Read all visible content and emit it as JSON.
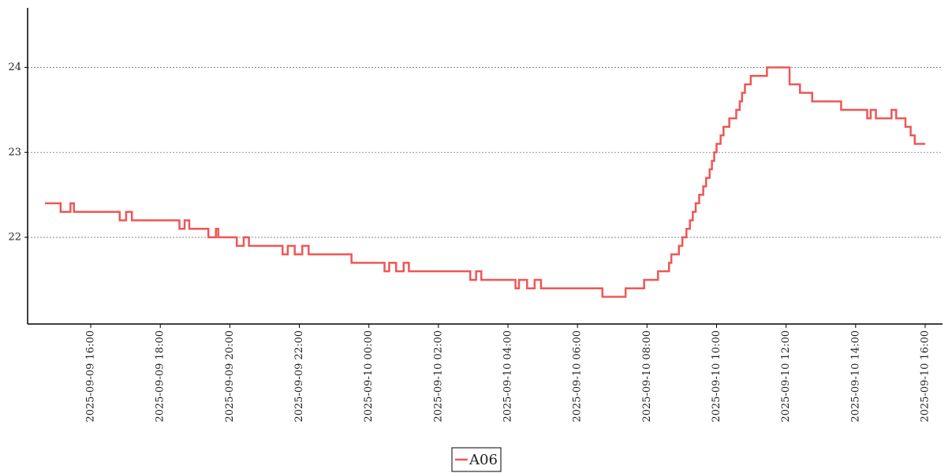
{
  "chart_data": {
    "type": "step-line",
    "x": [
      "2025-09-09 14:41",
      "2025-09-09 15:08",
      "2025-09-09 15:25",
      "2025-09-09 15:31",
      "2025-09-09 16:50",
      "2025-09-09 17:01",
      "2025-09-09 17:11",
      "2025-09-09 18:33",
      "2025-09-09 18:42",
      "2025-09-09 18:50",
      "2025-09-09 19:23",
      "2025-09-09 19:36",
      "2025-09-09 19:40",
      "2025-09-09 20:12",
      "2025-09-09 20:24",
      "2025-09-09 20:33",
      "2025-09-09 21:31",
      "2025-09-09 21:40",
      "2025-09-09 21:52",
      "2025-09-09 22:05",
      "2025-09-09 22:16",
      "2025-09-09 23:30",
      "2025-09-10 00:27",
      "2025-09-10 00:35",
      "2025-09-10 00:47",
      "2025-09-10 01:00",
      "2025-09-10 01:09",
      "2025-09-10 02:55",
      "2025-09-10 03:05",
      "2025-09-10 03:14",
      "2025-09-10 04:13",
      "2025-09-10 04:19",
      "2025-09-10 04:33",
      "2025-09-10 04:46",
      "2025-09-10 04:57",
      "2025-09-10 06:43",
      "2025-09-10 07:23",
      "2025-09-10 07:55",
      "2025-09-10 08:19",
      "2025-09-10 08:38",
      "2025-09-10 08:42",
      "2025-09-10 08:55",
      "2025-09-10 09:01",
      "2025-09-10 09:08",
      "2025-09-10 09:14",
      "2025-09-10 09:19",
      "2025-09-10 09:24",
      "2025-09-10 09:30",
      "2025-09-10 09:37",
      "2025-09-10 09:42",
      "2025-09-10 09:48",
      "2025-09-10 09:52",
      "2025-09-10 09:56",
      "2025-09-10 10:00",
      "2025-09-10 10:07",
      "2025-09-10 10:12",
      "2025-09-10 10:22",
      "2025-09-10 10:34",
      "2025-09-10 10:40",
      "2025-09-10 10:44",
      "2025-09-10 10:49",
      "2025-09-10 10:59",
      "2025-09-10 11:27",
      "2025-09-10 12:06",
      "2025-09-10 12:24",
      "2025-09-10 12:45",
      "2025-09-10 13:35",
      "2025-09-10 14:20",
      "2025-09-10 14:26",
      "2025-09-10 14:35",
      "2025-09-10 15:02",
      "2025-09-10 15:10",
      "2025-09-10 15:26",
      "2025-09-10 15:35",
      "2025-09-10 15:42",
      "2025-09-10 16:00"
    ],
    "series": [
      {
        "name": "A06",
        "color": "#ef5656",
        "values": [
          22.4,
          22.3,
          22.4,
          22.3,
          22.2,
          22.3,
          22.2,
          22.1,
          22.2,
          22.1,
          22.0,
          22.1,
          22.0,
          21.9,
          22.0,
          21.9,
          21.8,
          21.9,
          21.8,
          21.9,
          21.8,
          21.7,
          21.6,
          21.7,
          21.6,
          21.7,
          21.6,
          21.5,
          21.6,
          21.5,
          21.4,
          21.5,
          21.4,
          21.5,
          21.4,
          21.3,
          21.4,
          21.5,
          21.6,
          21.7,
          21.8,
          21.9,
          22.0,
          22.1,
          22.2,
          22.3,
          22.4,
          22.5,
          22.6,
          22.7,
          22.8,
          22.9,
          23.0,
          23.1,
          23.2,
          23.3,
          23.4,
          23.5,
          23.6,
          23.7,
          23.8,
          23.9,
          24.0,
          23.8,
          23.7,
          23.6,
          23.5,
          23.4,
          23.5,
          23.4,
          23.5,
          23.4,
          23.3,
          23.2,
          23.1,
          23.1
        ]
      }
    ],
    "xlim": [
      "2025-09-09 14:11",
      "2025-09-10 16:30"
    ],
    "xticks": [
      "2025-09-09 16:00",
      "2025-09-09 18:00",
      "2025-09-09 20:00",
      "2025-09-09 22:00",
      "2025-09-10 00:00",
      "2025-09-10 02:00",
      "2025-09-10 04:00",
      "2025-09-10 06:00",
      "2025-09-10 08:00",
      "2025-09-10 10:00",
      "2025-09-10 12:00",
      "2025-09-10 14:00",
      "2025-09-10 16:00"
    ],
    "ylim": [
      20.98,
      24.7
    ],
    "yticks": [
      22,
      23,
      24
    ],
    "grid": true,
    "legend": "bottom"
  }
}
